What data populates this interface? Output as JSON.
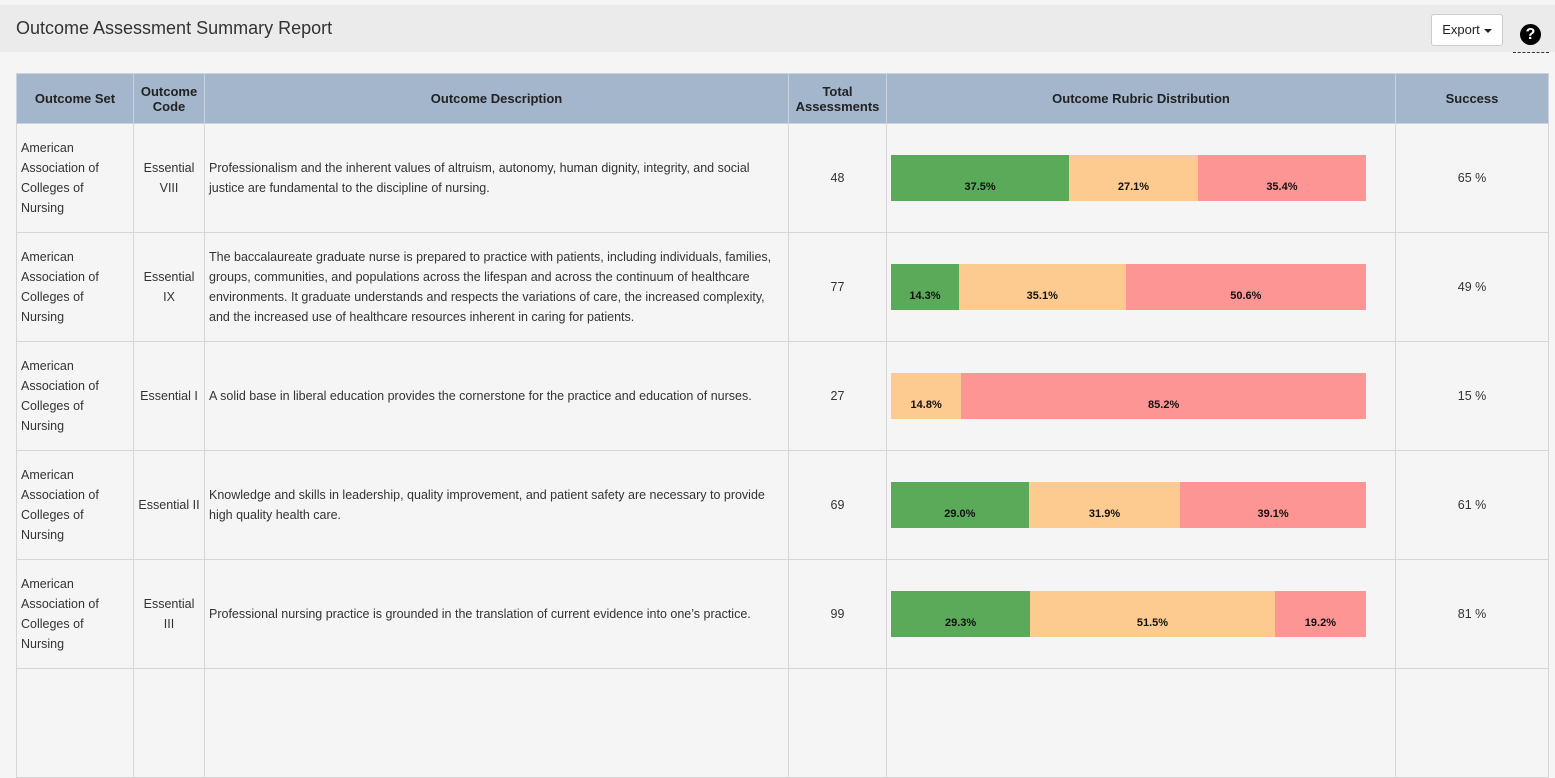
{
  "header": {
    "title": "Outcome Assessment Summary Report",
    "export_button": "Export",
    "help_icon": "?"
  },
  "table": {
    "columns": [
      "Outcome Set",
      "Outcome Code",
      "Outcome Description",
      "Total Assessments",
      "Outcome Rubric Distribution",
      "Success"
    ],
    "rubric_colors": [
      "#5aaa5a",
      "#fdcb8f",
      "#fe9595"
    ],
    "rows": [
      {
        "outcome_set": "American Association of Colleges of Nursing",
        "outcome_code": "Essential VIII",
        "description": "Professionalism and the inherent values of altruism, autonomy, human dignity, integrity, and social justice are fundamental to the discipline of nursing.",
        "total_assessments": 48,
        "distribution": {
          "values": [
            37.5,
            27.1,
            35.4
          ],
          "value_labels": [
            "37.5%",
            "27.1%",
            "35.4%"
          ]
        },
        "success": "65 %"
      },
      {
        "outcome_set": "American Association of Colleges of Nursing",
        "outcome_code": "Essential IX",
        "description": "The baccalaureate graduate nurse is prepared to practice with patients, including individuals, families, groups, communities, and populations across the lifespan and across the continuum of healthcare environments. It graduate understands and respects the variations of care, the increased complexity, and the increased use of healthcare resources inherent in caring for patients.",
        "total_assessments": 77,
        "distribution": {
          "values": [
            14.3,
            35.1,
            50.6
          ],
          "value_labels": [
            "14.3%",
            "35.1%",
            "50.6%"
          ]
        },
        "success": "49 %"
      },
      {
        "outcome_set": "American Association of Colleges of Nursing",
        "outcome_code": "Essential I",
        "description": "A solid base in liberal education provides the cornerstone for the practice and education of nurses.",
        "total_assessments": 27,
        "distribution": {
          "values": [
            null,
            14.8,
            85.2
          ],
          "value_labels": [
            null,
            "14.8%",
            "85.2%"
          ]
        },
        "success": "15 %"
      },
      {
        "outcome_set": "American Association of Colleges of Nursing",
        "outcome_code": "Essential II",
        "description": "Knowledge and skills in leadership, quality improvement, and patient safety are necessary to provide high quality health care.",
        "total_assessments": 69,
        "distribution": {
          "values": [
            29.0,
            31.9,
            39.1
          ],
          "value_labels": [
            "29.0%",
            "31.9%",
            "39.1%"
          ]
        },
        "success": "61 %"
      },
      {
        "outcome_set": "American Association of Colleges of Nursing",
        "outcome_code": "Essential III",
        "description": "Professional nursing practice is grounded in the translation of current evidence into one’s practice.",
        "total_assessments": 99,
        "distribution": {
          "values": [
            29.3,
            51.5,
            19.2
          ],
          "value_labels": [
            "29.3%",
            "51.5%",
            "19.2%"
          ]
        },
        "success": "81 %"
      }
    ]
  }
}
